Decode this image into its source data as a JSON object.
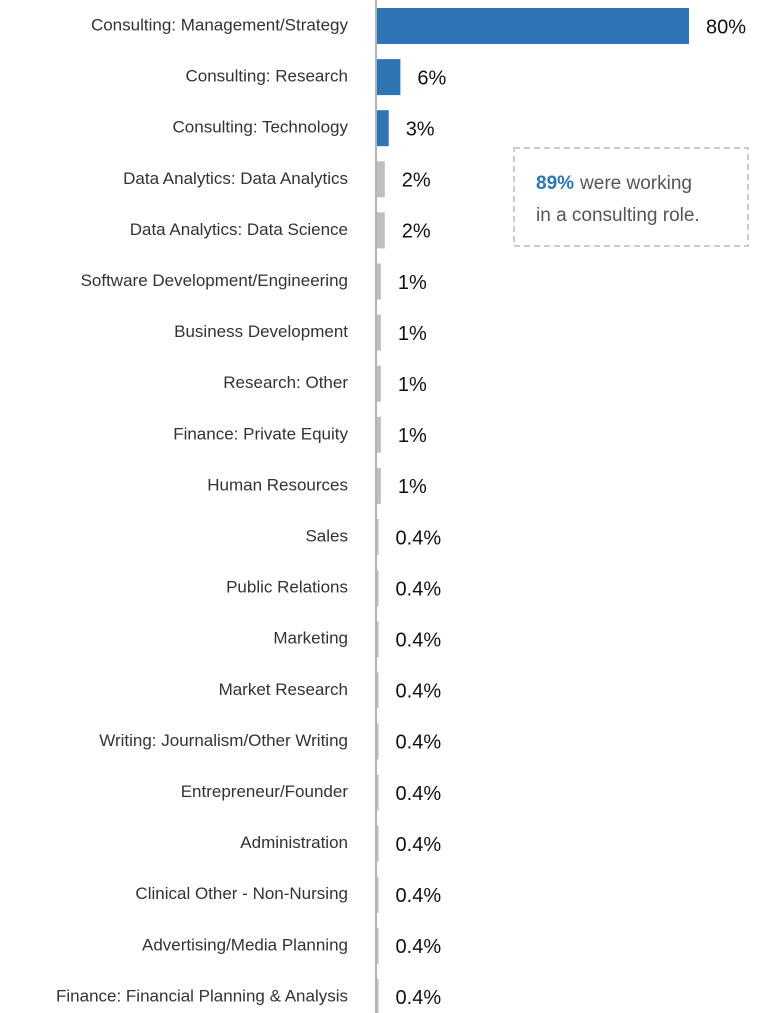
{
  "chart_data": {
    "type": "barh",
    "categories": [
      "Consulting: Management/Strategy",
      "Consulting: Research",
      "Consulting: Technology",
      "Data Analytics: Data Analytics",
      "Data Analytics: Data Science",
      "Software Development/Engineering",
      "Business Development",
      "Research: Other",
      "Finance: Private Equity",
      "Human Resources",
      "Sales",
      "Public Relations",
      "Marketing",
      "Market Research",
      "Writing: Journalism/Other Writing",
      "Entrepreneur/Founder",
      "Administration",
      "Clinical Other - Non-Nursing",
      "Advertising/Media Planning",
      "Finance: Financial Planning & Analysis"
    ],
    "values": [
      80,
      6,
      3,
      2,
      2,
      1,
      1,
      1,
      1,
      1,
      0.4,
      0.4,
      0.4,
      0.4,
      0.4,
      0.4,
      0.4,
      0.4,
      0.4,
      0.4
    ],
    "value_labels": [
      "80%",
      "6%",
      "3%",
      "2%",
      "2%",
      "1%",
      "1%",
      "1%",
      "1%",
      "1%",
      "0.4%",
      "0.4%",
      "0.4%",
      "0.4%",
      "0.4%",
      "0.4%",
      "0.4%",
      "0.4%",
      "0.4%",
      "0.4%"
    ],
    "colors": [
      "#2e75b6",
      "#2e75b6",
      "#2e75b6",
      "#bfbfbf",
      "#bfbfbf",
      "#bfbfbf",
      "#bfbfbf",
      "#bfbfbf",
      "#bfbfbf",
      "#bfbfbf",
      "#bfbfbf",
      "#bfbfbf",
      "#bfbfbf",
      "#bfbfbf",
      "#bfbfbf",
      "#bfbfbf",
      "#bfbfbf",
      "#bfbfbf",
      "#bfbfbf",
      "#bfbfbf"
    ],
    "xlim": [
      0,
      80
    ],
    "annotation": {
      "highlight": "89%",
      "lines": [
        "were working",
        "in a consulting role."
      ]
    }
  }
}
